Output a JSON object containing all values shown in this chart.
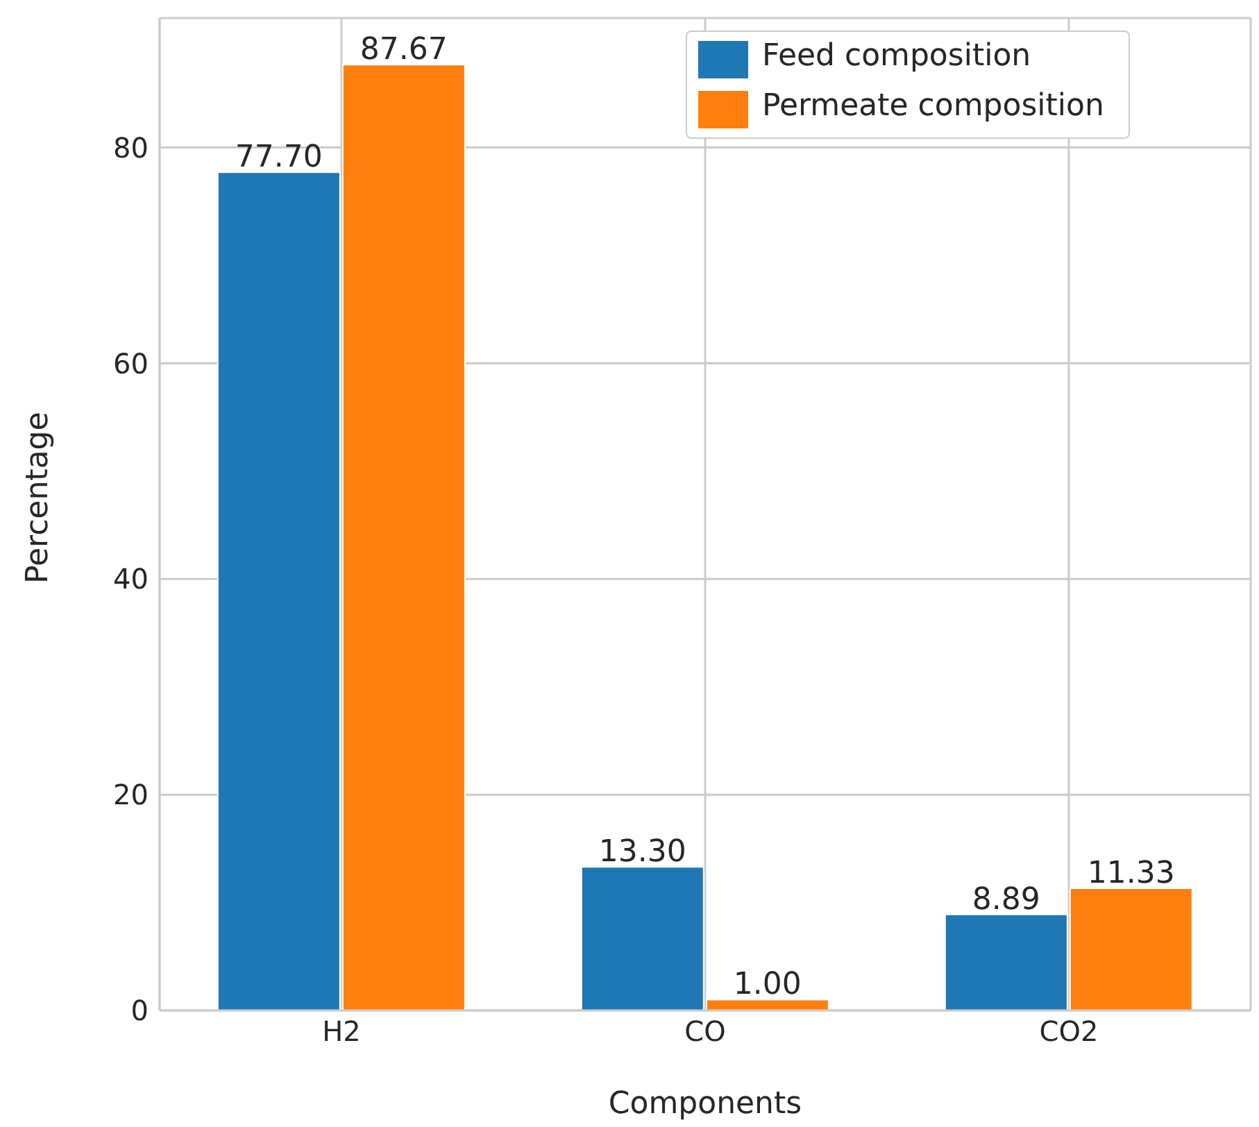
{
  "chart_data": {
    "type": "bar",
    "xlabel": "Components",
    "ylabel": "Percentage",
    "categories": [
      "H2",
      "CO",
      "CO2"
    ],
    "series": [
      {
        "name": "Feed composition",
        "color": "#1f77b4",
        "values": [
          77.7,
          13.3,
          8.89
        ],
        "value_labels": [
          "77.70",
          "13.30",
          "8.89"
        ]
      },
      {
        "name": "Permeate composition",
        "color": "#ff7f0e",
        "values": [
          87.67,
          1.0,
          11.33
        ],
        "value_labels": [
          "87.67",
          "1.00",
          "11.33"
        ]
      }
    ],
    "ylim": [
      0,
      92
    ],
    "yticks": [
      0,
      20,
      40,
      60,
      80
    ],
    "grid": true,
    "legend": "top right"
  }
}
